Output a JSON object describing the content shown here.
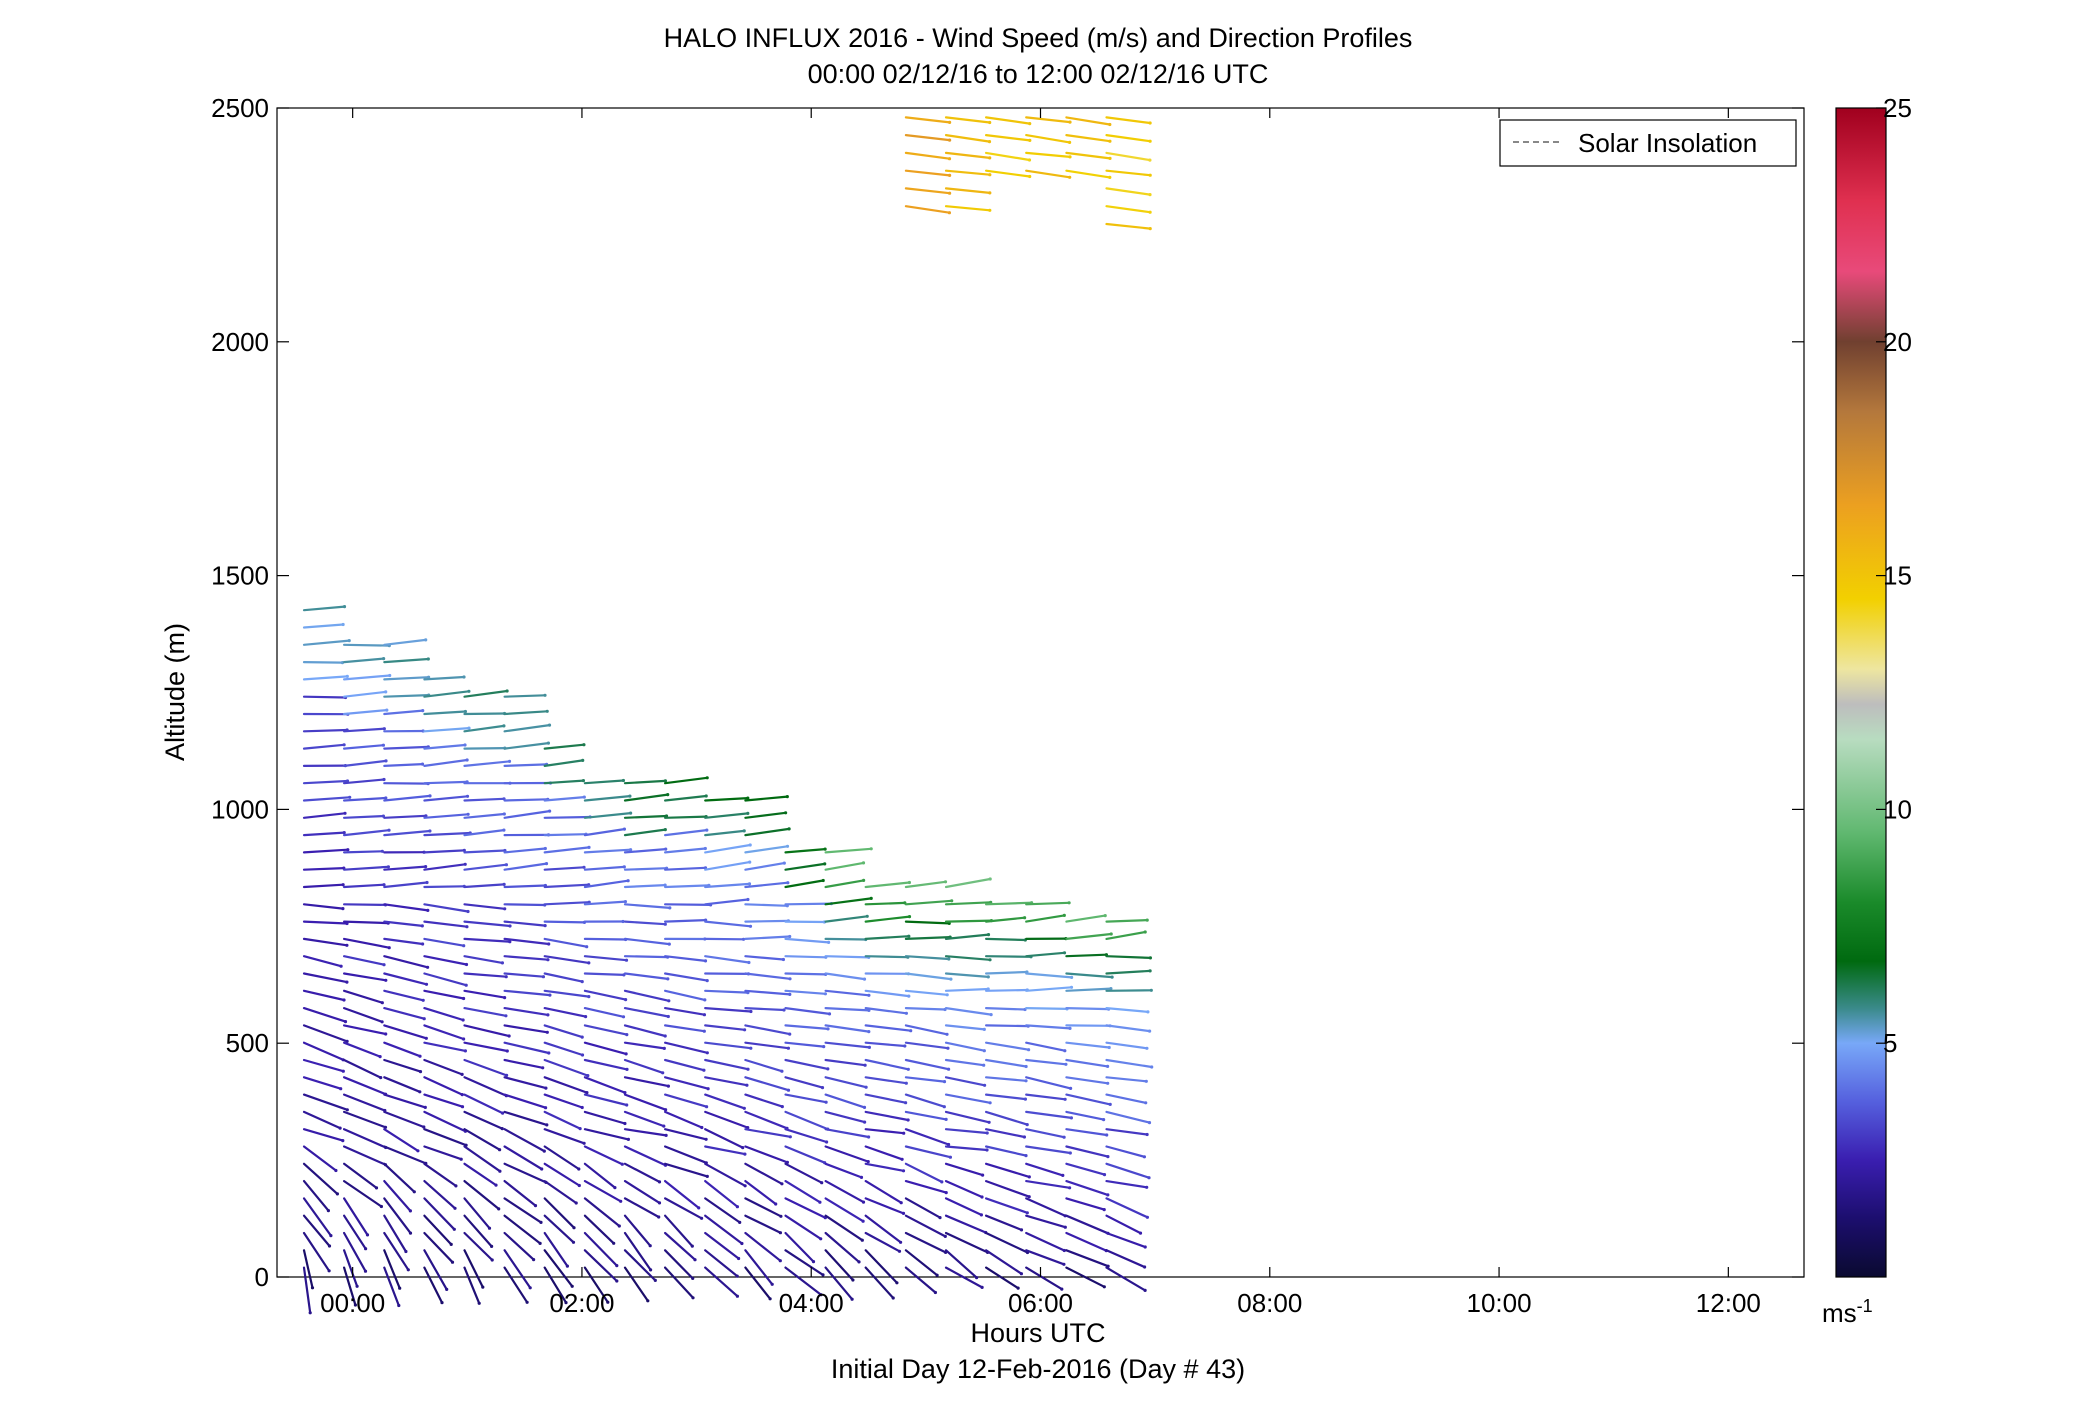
{
  "chart_data": {
    "type": "wind-barb-profile",
    "title": "HALO INFLUX 2016 - Wind Speed (m/s) and Direction Profiles",
    "subtitle": "00:00 02/12/16 to 12:00 02/12/16  UTC",
    "xlabel": "Hours UTC",
    "xlabel2": "Initial Day 12-Feb-2016 (Day # 43)",
    "ylabel": "Altitude (m)",
    "xlim": [
      -0.66,
      12.66
    ],
    "ylim": [
      0,
      2500
    ],
    "x_ticks": [
      {
        "value": 0,
        "label": "00:00"
      },
      {
        "value": 2,
        "label": "02:00"
      },
      {
        "value": 4,
        "label": "04:00"
      },
      {
        "value": 6,
        "label": "06:00"
      },
      {
        "value": 8,
        "label": "08:00"
      },
      {
        "value": 10,
        "label": "10:00"
      },
      {
        "value": 12,
        "label": "12:00"
      }
    ],
    "y_ticks": [
      {
        "value": 0,
        "label": "0"
      },
      {
        "value": 500,
        "label": "500"
      },
      {
        "value": 1000,
        "label": "1000"
      },
      {
        "value": 1500,
        "label": "1500"
      },
      {
        "value": 2000,
        "label": "2000"
      },
      {
        "value": 2500,
        "label": "2500"
      }
    ],
    "legend": {
      "label": "Solar Insolation",
      "placement": "top-right",
      "color": "#888888"
    },
    "colorbar": {
      "range": [
        0,
        25
      ],
      "unit_base": "ms",
      "unit_exp": "-1",
      "ticks": [
        {
          "value": 5,
          "label": "5"
        },
        {
          "value": 10,
          "label": "10"
        },
        {
          "value": 15,
          "label": "15"
        },
        {
          "value": 20,
          "label": "20"
        },
        {
          "value": 25,
          "label": "25"
        }
      ]
    },
    "profile_times_hours": [
      -0.25,
      0.1,
      0.45,
      0.8,
      1.15,
      1.5,
      1.85,
      2.2,
      2.55,
      2.9,
      3.25,
      3.6,
      3.95,
      4.3,
      4.65,
      5.0,
      5.35,
      5.7,
      6.05,
      6.4,
      6.75
    ],
    "profile_tops_m": [
      1440,
      1360,
      1370,
      1290,
      1250,
      1250,
      1160,
      1080,
      1070,
      1080,
      1040,
      1040,
      930,
      910,
      860,
      870,
      850,
      830,
      830,
      780,
      790
    ],
    "range_gate_m": 37,
    "upper_layer": {
      "time_range_hours": [
        5.0,
        6.75
      ],
      "altitude_range_m": [
        2220,
        2480
      ],
      "speed_ms": 14.5
    }
  }
}
